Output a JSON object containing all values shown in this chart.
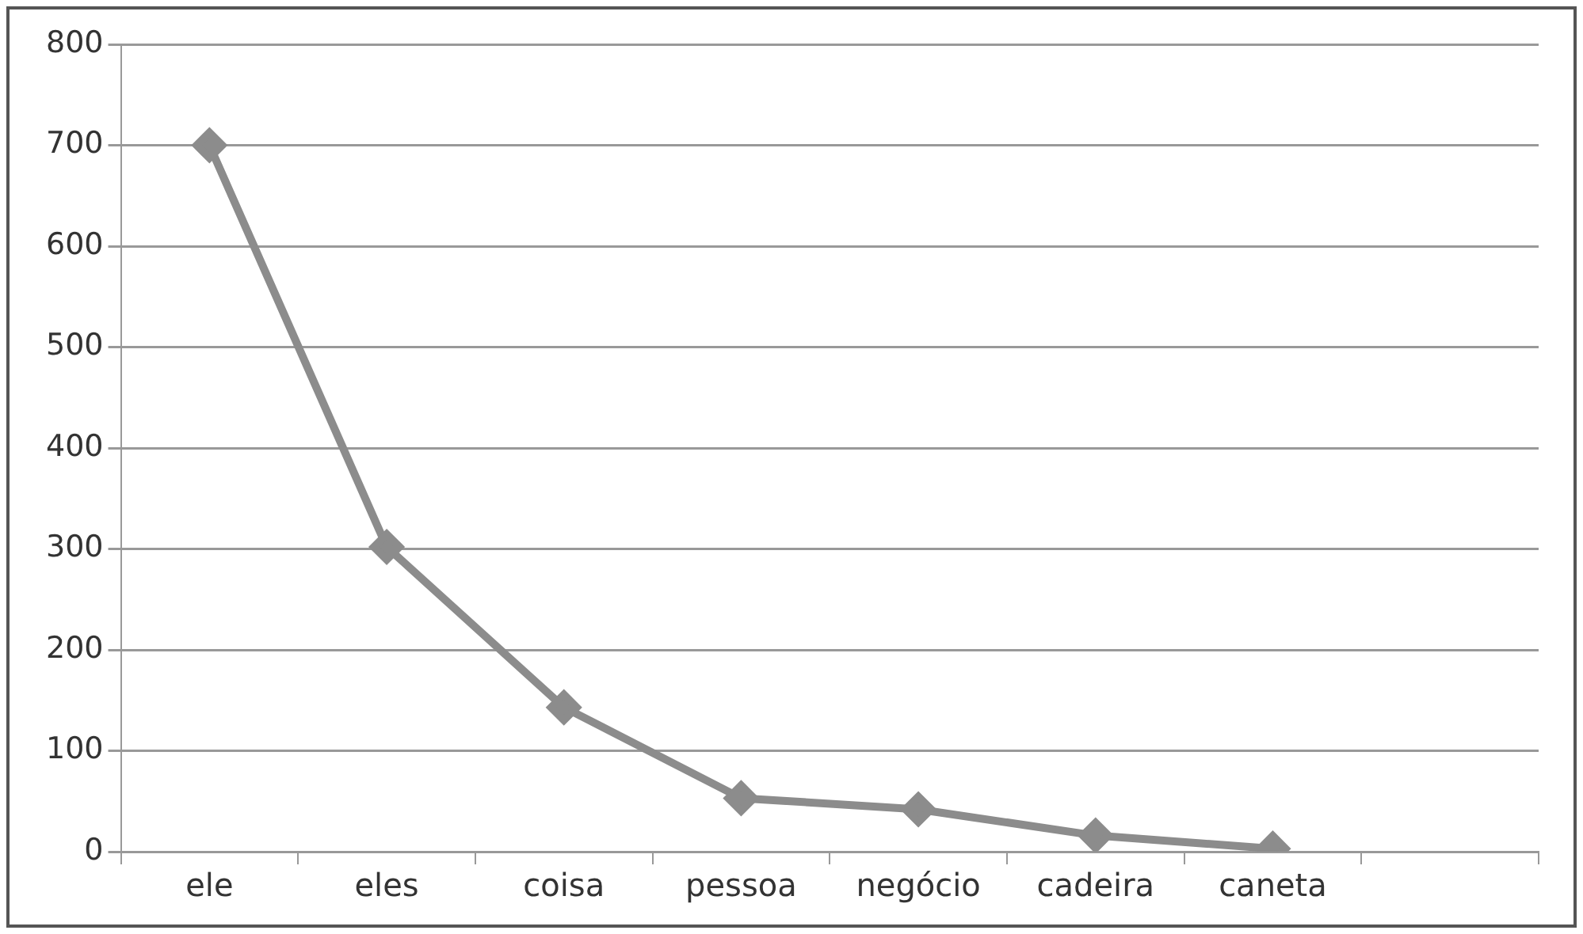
{
  "chart_data": {
    "type": "line",
    "categories": [
      "ele",
      "eles",
      "coisa",
      "pessoa",
      "negócio",
      "cadeira",
      "caneta",
      null
    ],
    "series": [
      {
        "color": "#8c8c8c",
        "values": [
          700,
          302,
          143,
          53,
          42,
          16,
          3,
          null
        ]
      }
    ],
    "ylim": [
      0,
      800
    ],
    "yticks": [
      0,
      100,
      200,
      300,
      400,
      500,
      600,
      700,
      800
    ],
    "grid": "y",
    "legend": false,
    "marker": "diamond",
    "line_style": "solid"
  }
}
